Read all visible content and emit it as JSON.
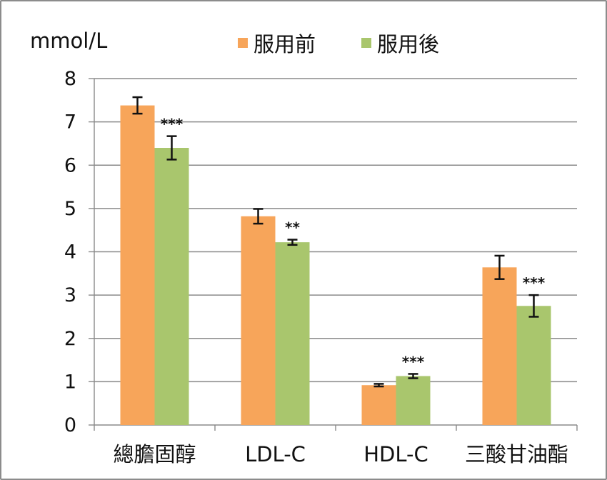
{
  "chart_data": {
    "type": "bar",
    "ylabel": "mmol/L",
    "categories": [
      "總膽固醇",
      "LDL-C",
      "HDL-C",
      "三酸甘油酯"
    ],
    "ylim": [
      0,
      8
    ],
    "yticks": [
      0,
      1,
      2,
      3,
      4,
      5,
      6,
      7,
      8
    ],
    "grid": true,
    "legend_position": "top",
    "series": [
      {
        "name": "服用前",
        "color": "#f7a55a",
        "values": [
          7.38,
          4.82,
          0.92,
          3.64
        ],
        "errors": [
          0.19,
          0.17,
          0.03,
          0.27
        ],
        "annotations": [
          "",
          "",
          "",
          ""
        ]
      },
      {
        "name": "服用後",
        "color": "#a9c66d",
        "values": [
          6.4,
          4.22,
          1.13,
          2.75
        ],
        "errors": [
          0.27,
          0.06,
          0.05,
          0.25
        ],
        "annotations": [
          "***",
          "**",
          "***",
          "***"
        ]
      }
    ]
  }
}
